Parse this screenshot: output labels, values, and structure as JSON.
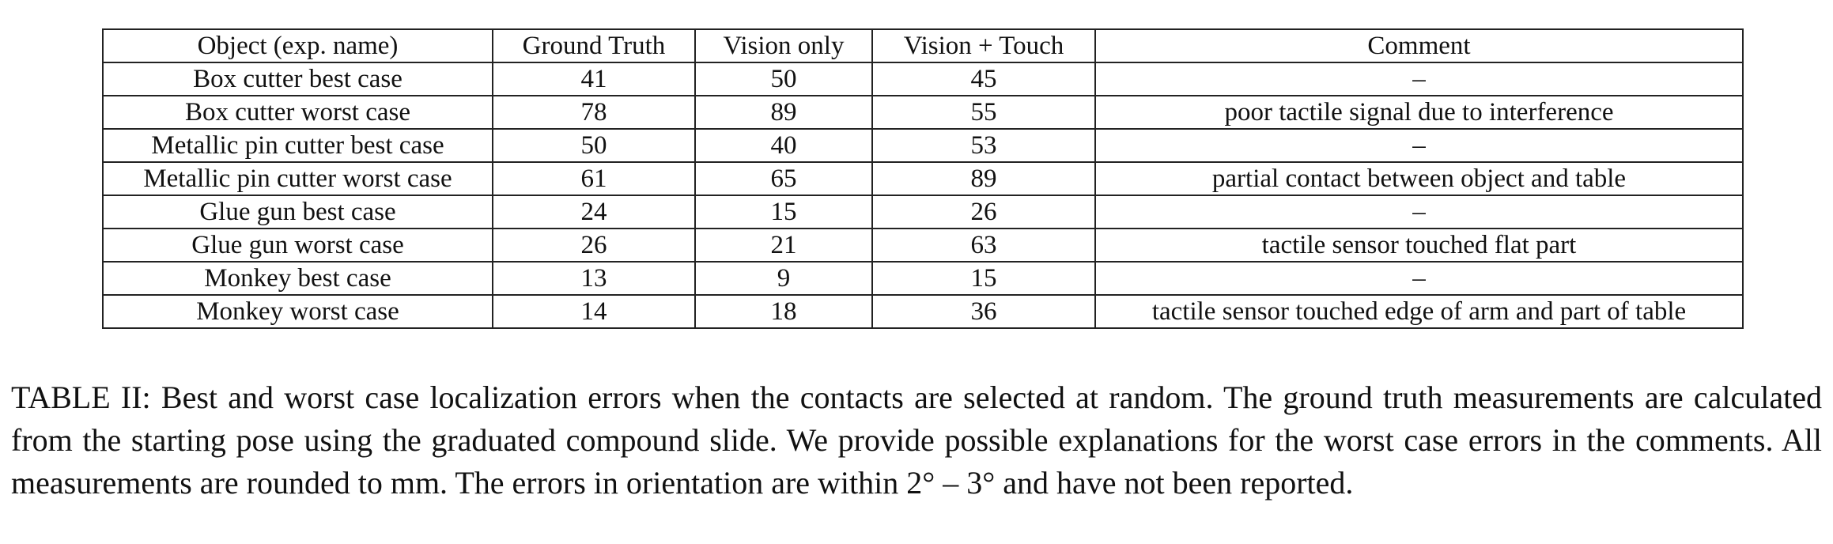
{
  "table": {
    "headers": [
      "Object (exp. name)",
      "Ground Truth",
      "Vision only",
      "Vision + Touch",
      "Comment"
    ],
    "rows": [
      [
        "Box cutter best case",
        "41",
        "50",
        "45",
        "–"
      ],
      [
        "Box cutter worst case",
        "78",
        "89",
        "55",
        "poor tactile signal due to interference"
      ],
      [
        "Metallic pin cutter best case",
        "50",
        "40",
        "53",
        "–"
      ],
      [
        "Metallic pin cutter worst case",
        "61",
        "65",
        "89",
        "partial contact between object and table"
      ],
      [
        "Glue gun best case",
        "24",
        "15",
        "26",
        "–"
      ],
      [
        "Glue gun worst case",
        "26",
        "21",
        "63",
        "tactile sensor touched flat part"
      ],
      [
        "Monkey best case",
        "13",
        "9",
        "15",
        "–"
      ],
      [
        "Monkey worst case",
        "14",
        "18",
        "36",
        "tactile sensor touched edge of arm and part of table"
      ]
    ]
  },
  "caption": {
    "text": "TABLE II: Best and worst case localization errors when the contacts are selected at random. The ground truth measurements are calculated from the starting pose using the graduated compound slide. We provide possible explanations for the worst case errors in the comments. All measurements are rounded to mm. The errors in orientation are within 2° – 3° and have not been reported."
  }
}
